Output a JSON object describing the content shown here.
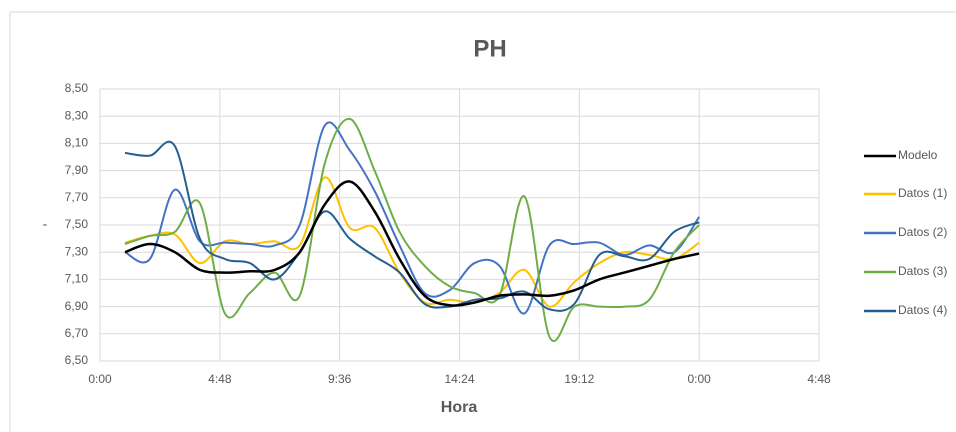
{
  "chart_data": {
    "type": "line",
    "title": "PH",
    "xlabel": "Hora",
    "ylabel": "-",
    "x": [
      1,
      2,
      3,
      4,
      5,
      6,
      7,
      8,
      9,
      10,
      11,
      12,
      13,
      14,
      15,
      16,
      17,
      18,
      19,
      20,
      21,
      22,
      23,
      24
    ],
    "series": [
      {
        "name": "Modelo",
        "color": "#000000",
        "values": [
          7.3,
          7.36,
          7.3,
          7.17,
          7.15,
          7.16,
          7.17,
          7.3,
          7.65,
          7.82,
          7.6,
          7.25,
          6.98,
          6.91,
          6.93,
          6.98,
          6.99,
          6.98,
          7.02,
          7.1,
          7.15,
          7.2,
          7.25,
          7.29
        ]
      },
      {
        "name": "Datos (1)",
        "color": "#ffc000",
        "values": [
          7.37,
          7.42,
          7.43,
          7.22,
          7.38,
          7.36,
          7.38,
          7.35,
          7.85,
          7.48,
          7.48,
          7.15,
          6.93,
          6.95,
          6.93,
          7.0,
          7.17,
          6.9,
          7.08,
          7.22,
          7.3,
          7.28,
          7.25,
          7.37
        ]
      },
      {
        "name": "Datos (2)",
        "color": "#4472c4",
        "values": [
          7.3,
          7.25,
          7.76,
          7.38,
          7.37,
          7.36,
          7.35,
          7.5,
          8.23,
          8.05,
          7.75,
          7.35,
          7.0,
          7.02,
          7.22,
          7.2,
          6.85,
          7.35,
          7.36,
          7.37,
          7.28,
          7.35,
          7.3,
          7.56
        ]
      },
      {
        "name": "Datos (3)",
        "color": "#70ad47",
        "values": [
          7.36,
          7.42,
          7.45,
          7.66,
          6.85,
          7.0,
          7.15,
          6.98,
          7.95,
          8.28,
          7.9,
          7.45,
          7.2,
          7.05,
          7.0,
          6.98,
          7.71,
          6.68,
          6.9,
          6.9,
          6.9,
          6.95,
          7.3,
          7.5
        ]
      },
      {
        "name": "Datos (4)",
        "color": "#255e91",
        "values": [
          8.03,
          8.01,
          8.08,
          7.4,
          7.25,
          7.22,
          7.1,
          7.3,
          7.6,
          7.4,
          7.27,
          7.15,
          6.92,
          6.9,
          6.95,
          6.96,
          7.01,
          6.88,
          6.92,
          7.28,
          7.27,
          7.25,
          7.45,
          7.52
        ]
      }
    ],
    "xlim": [
      0,
      28.8
    ],
    "xticks": [
      {
        "value": 0,
        "label": "0:00"
      },
      {
        "value": 4.8,
        "label": "4:48"
      },
      {
        "value": 9.6,
        "label": "9:36"
      },
      {
        "value": 14.4,
        "label": "14:24"
      },
      {
        "value": 19.2,
        "label": "19:12"
      },
      {
        "value": 24,
        "label": "0:00"
      },
      {
        "value": 28.8,
        "label": "4:48"
      }
    ],
    "ylim": [
      6.5,
      8.5
    ],
    "yticks": [
      {
        "value": 6.5,
        "label": "6,50"
      },
      {
        "value": 6.7,
        "label": "6,70"
      },
      {
        "value": 6.9,
        "label": "6,90"
      },
      {
        "value": 7.1,
        "label": "7,10"
      },
      {
        "value": 7.3,
        "label": "7,30"
      },
      {
        "value": 7.5,
        "label": "7,50"
      },
      {
        "value": 7.7,
        "label": "7,70"
      },
      {
        "value": 7.9,
        "label": "7,90"
      },
      {
        "value": 8.1,
        "label": "8,10"
      },
      {
        "value": 8.3,
        "label": "8,30"
      },
      {
        "value": 8.5,
        "label": "8,50"
      }
    ],
    "grid": true,
    "legend": "right"
  }
}
